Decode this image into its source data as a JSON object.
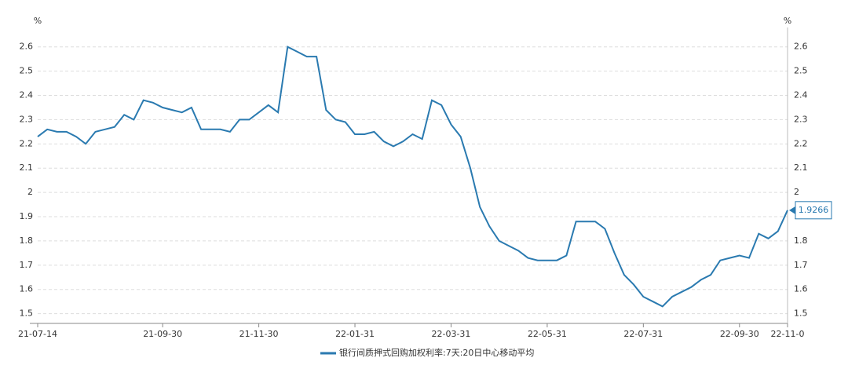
{
  "chart_data": {
    "type": "line",
    "unit": "%",
    "categories": [
      "21-07-14",
      null,
      null,
      null,
      null,
      null,
      null,
      null,
      null,
      null,
      null,
      null,
      null,
      "21-09-30",
      null,
      null,
      null,
      null,
      null,
      null,
      null,
      null,
      null,
      "21-11-30",
      null,
      null,
      null,
      null,
      null,
      null,
      null,
      null,
      null,
      "22-01-31",
      null,
      null,
      null,
      null,
      null,
      null,
      null,
      null,
      null,
      "22-03-31",
      null,
      null,
      null,
      null,
      null,
      null,
      null,
      null,
      null,
      "22-05-31",
      null,
      null,
      null,
      null,
      null,
      null,
      null,
      null,
      null,
      "22-07-31",
      null,
      null,
      null,
      null,
      null,
      null,
      null,
      null,
      null,
      "22-09-30",
      null,
      null,
      null,
      null,
      "22-11-0"
    ],
    "series": [
      {
        "name": "银行间质押式回购加权利率:7天:20日中心移动平均",
        "color": "#2a7ab0",
        "values": [
          2.23,
          2.26,
          2.25,
          2.25,
          2.23,
          2.2,
          2.25,
          2.26,
          2.27,
          2.32,
          2.3,
          2.38,
          2.37,
          2.35,
          2.34,
          2.33,
          2.35,
          2.26,
          2.26,
          2.26,
          2.25,
          2.3,
          2.3,
          2.33,
          2.36,
          2.33,
          2.6,
          2.58,
          2.56,
          2.56,
          2.34,
          2.3,
          2.29,
          2.24,
          2.24,
          2.25,
          2.21,
          2.19,
          2.21,
          2.24,
          2.22,
          2.38,
          2.36,
          2.28,
          2.23,
          2.1,
          1.94,
          1.86,
          1.8,
          1.78,
          1.76,
          1.73,
          1.72,
          1.72,
          1.72,
          1.74,
          1.88,
          1.88,
          1.88,
          1.85,
          1.75,
          1.66,
          1.62,
          1.57,
          1.55,
          1.53,
          1.57,
          1.59,
          1.61,
          1.64,
          1.66,
          1.72,
          1.73,
          1.74,
          1.73,
          1.83,
          1.81,
          1.84,
          1.9266
        ]
      }
    ],
    "ylim": [
      1.46,
      2.68
    ],
    "yticks": [
      1.5,
      1.6,
      1.7,
      1.8,
      1.9,
      2,
      2.1,
      2.2,
      2.3,
      2.4,
      2.5,
      2.6
    ],
    "grid": true
  }
}
